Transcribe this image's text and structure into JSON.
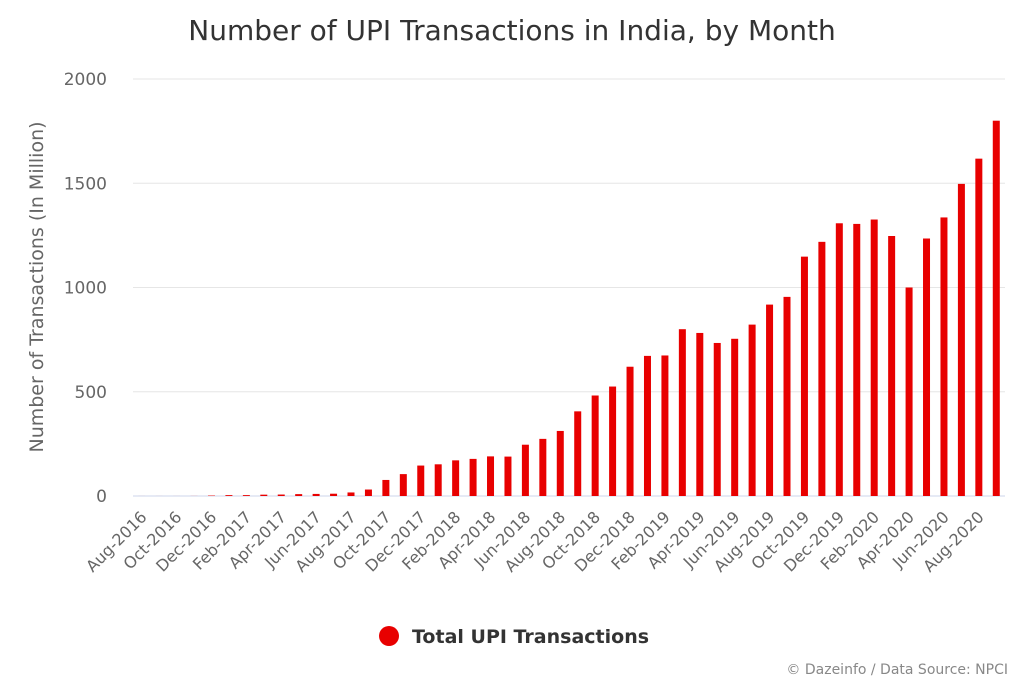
{
  "chart_data": {
    "type": "bar",
    "title": "Number of UPI Transactions in India, by Month",
    "ylabel": "Number of Transactions (In Million)",
    "xlabel": "",
    "ylim": [
      0,
      2000
    ],
    "yticks": [
      "0",
      "500",
      "1000",
      "1500",
      "2000"
    ],
    "grid": true,
    "legend_position": "bottom",
    "categories": [
      "Aug-2016",
      "Sep-2016",
      "Oct-2016",
      "Nov-2016",
      "Dec-2016",
      "Jan-2017",
      "Feb-2017",
      "Mar-2017",
      "Apr-2017",
      "May-2017",
      "Jun-2017",
      "Jul-2017",
      "Aug-2017",
      "Sep-2017",
      "Oct-2017",
      "Nov-2017",
      "Dec-2017",
      "Jan-2018",
      "Feb-2018",
      "Mar-2018",
      "Apr-2018",
      "May-2018",
      "Jun-2018",
      "Jul-2018",
      "Aug-2018",
      "Sep-2018",
      "Oct-2018",
      "Nov-2018",
      "Dec-2018",
      "Jan-2019",
      "Feb-2019",
      "Mar-2019",
      "Apr-2019",
      "May-2019",
      "Jun-2019",
      "Jul-2019",
      "Aug-2019",
      "Sep-2019",
      "Oct-2019",
      "Nov-2019",
      "Dec-2019",
      "Jan-2020",
      "Feb-2020",
      "Mar-2020",
      "Apr-2020",
      "May-2020",
      "Jun-2020",
      "Jul-2020",
      "Aug-2020",
      "Sep-2020"
    ],
    "tick_labels": [
      "Aug-2016",
      "Oct-2016",
      "Dec-2016",
      "Feb-2017",
      "Apr-2017",
      "Jun-2017",
      "Aug-2017",
      "Oct-2017",
      "Dec-2017",
      "Feb-2018",
      "Apr-2018",
      "Jun-2018",
      "Aug-2018",
      "Oct-2018",
      "Dec-2018",
      "Feb-2019",
      "Apr-2019",
      "Jun-2019",
      "Aug-2019",
      "Oct-2019",
      "Dec-2019",
      "Feb-2020",
      "Apr-2020",
      "Jun-2020",
      "Aug-2020"
    ],
    "series": [
      {
        "name": "Total UPI Transactions",
        "color": "#e80000",
        "values": [
          0.1,
          0.1,
          0.1,
          0.3,
          2,
          4.2,
          4.2,
          6.4,
          7,
          9,
          10,
          11,
          17,
          31,
          77,
          105,
          146,
          152,
          171,
          178,
          190,
          189,
          246,
          274,
          312,
          406,
          482,
          525,
          620,
          672,
          674,
          800,
          782,
          734,
          754,
          822,
          918,
          955,
          1148,
          1219,
          1308,
          1305,
          1326,
          1247,
          1000,
          1235,
          1336,
          1497,
          1618,
          1800
        ]
      }
    ]
  },
  "credit": "© Dazeinfo / Data Source: NPCI"
}
